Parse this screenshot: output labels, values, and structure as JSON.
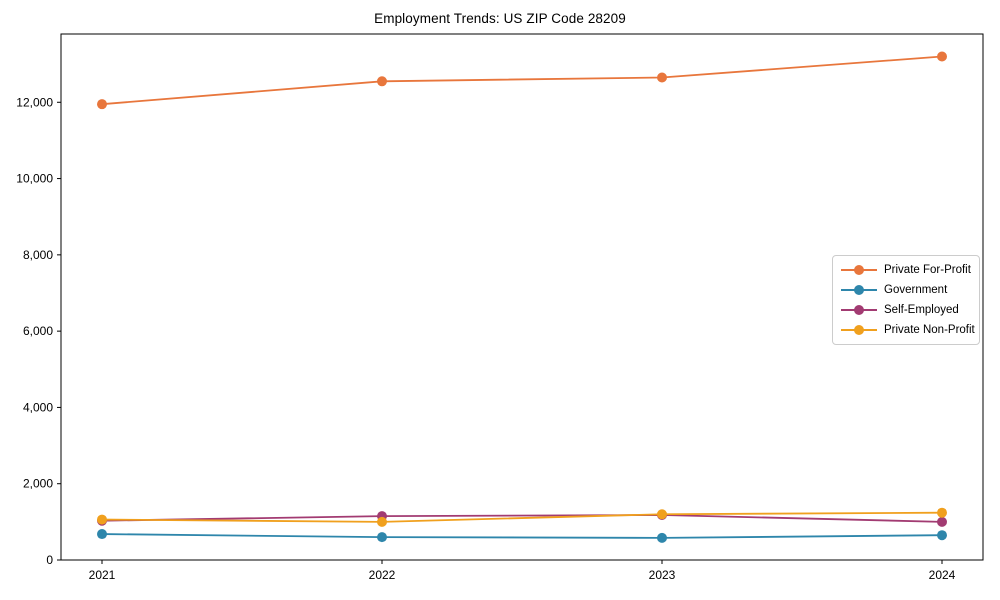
{
  "chart_data": {
    "type": "line",
    "title": "Employment Trends: US ZIP Code 28209",
    "xlabel": "",
    "ylabel": "",
    "x_labels": [
      "2021",
      "2022",
      "2023",
      "2024"
    ],
    "series": [
      {
        "name": "Private For-Profit",
        "color": "#E8763C",
        "values": [
          11950,
          12550,
          12650,
          13200
        ]
      },
      {
        "name": "Government",
        "color": "#2E86AB",
        "values": [
          680,
          600,
          580,
          650
        ]
      },
      {
        "name": "Self-Employed",
        "color": "#A23B72",
        "values": [
          1030,
          1150,
          1180,
          1000
        ]
      },
      {
        "name": "Private Non-Profit",
        "color": "#F0A01E",
        "values": [
          1060,
          1000,
          1200,
          1240
        ]
      }
    ],
    "yticks": [
      0,
      2000,
      4000,
      6000,
      8000,
      10000,
      12000
    ],
    "ylim": [
      0,
      13790
    ],
    "grid": false,
    "legend_position": "center-right",
    "axis_color": "#000000",
    "background_color": "#ffffff",
    "marker": "circle"
  }
}
